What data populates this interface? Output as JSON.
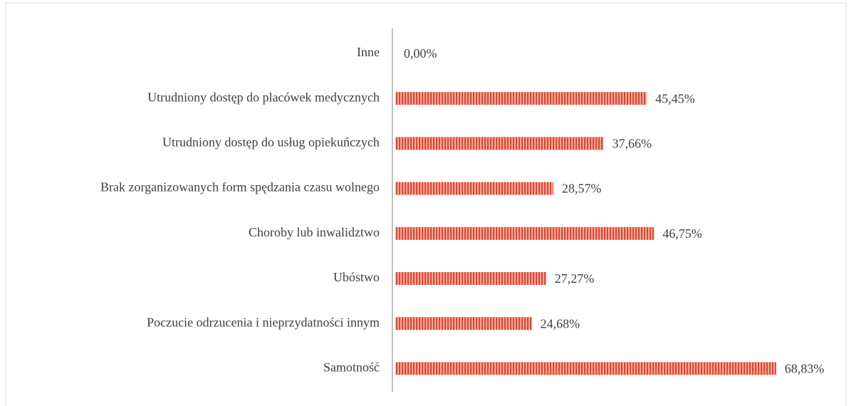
{
  "chart_data": {
    "type": "bar",
    "orientation": "horizontal",
    "categories": [
      "Inne",
      "Utrudniony dostęp do placówek medycznych",
      "Utrudniony dostęp do usług opiekuńczych",
      "Brak zorganizowanych form spędzania czasu wolnego",
      "Choroby lub inwalidztwo",
      "Ubóstwo",
      "Poczucie odrzucenia i nieprzydatności innym",
      "Samotność"
    ],
    "values": [
      0,
      45.45,
      37.66,
      28.57,
      46.75,
      27.27,
      24.68,
      68.83
    ],
    "value_labels": [
      "0,00%",
      "45,45%",
      "37,66%",
      "28,57%",
      "46,75%",
      "27,27%",
      "24,68%",
      "68,83%"
    ],
    "color": "#e8432b",
    "xlim": [
      0,
      70
    ]
  }
}
